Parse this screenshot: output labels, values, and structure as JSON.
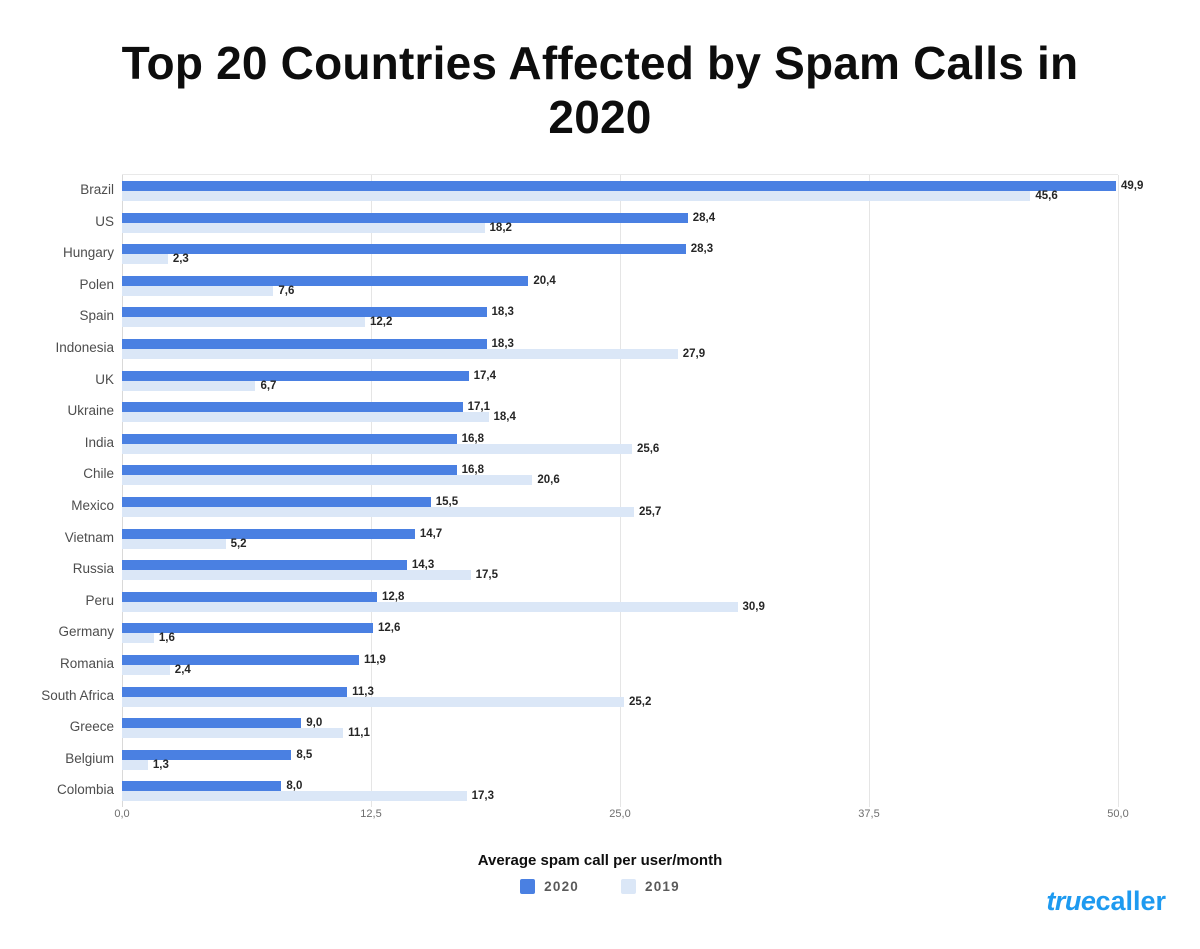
{
  "title": "Top 20 Countries Affected by Spam Calls in 2020",
  "chart_data": {
    "type": "bar",
    "orientation": "horizontal",
    "title": "Top 20 Countries Affected by Spam Calls in 2020",
    "xlabel": "Average spam call per user/month",
    "ylabel": "",
    "xlim": [
      0,
      50
    ],
    "x_ticks": [
      "0,0",
      "12,5",
      "25,0",
      "37,5",
      "50,0"
    ],
    "x_tick_values": [
      0,
      12.5,
      25,
      37.5,
      50
    ],
    "grid": true,
    "legend_position": "bottom",
    "decimal_separator": ",",
    "categories": [
      "Brazil",
      "US",
      "Hungary",
      "Polen",
      "Spain",
      "Indonesia",
      "UK",
      "Ukraine",
      "India",
      "Chile",
      "Mexico",
      "Vietnam",
      "Russia",
      "Peru",
      "Germany",
      "Romania",
      "South Africa",
      "Greece",
      "Belgium",
      "Colombia"
    ],
    "series": [
      {
        "name": "2020",
        "color": "#4a80e2",
        "values": [
          49.9,
          28.4,
          28.3,
          20.4,
          18.3,
          18.3,
          17.4,
          17.1,
          16.8,
          16.8,
          15.5,
          14.7,
          14.3,
          12.8,
          12.6,
          11.9,
          11.3,
          9.0,
          8.5,
          8.0
        ]
      },
      {
        "name": "2019",
        "color": "#dbe7f7",
        "values": [
          45.6,
          18.2,
          2.3,
          7.6,
          12.2,
          27.9,
          6.7,
          18.4,
          25.6,
          20.6,
          25.7,
          5.2,
          17.5,
          30.9,
          1.6,
          2.4,
          25.2,
          11.1,
          1.3,
          17.3
        ]
      }
    ]
  },
  "colors": {
    "grid": "#e5e5e5",
    "axis": "#d9d9d9",
    "value_label": "#262626",
    "country_label": "#4d4d4d",
    "tick_label": "#6e6e6e",
    "logo_blue": "#1e9af0"
  },
  "logo": {
    "part1": "true",
    "part2": "caller"
  }
}
